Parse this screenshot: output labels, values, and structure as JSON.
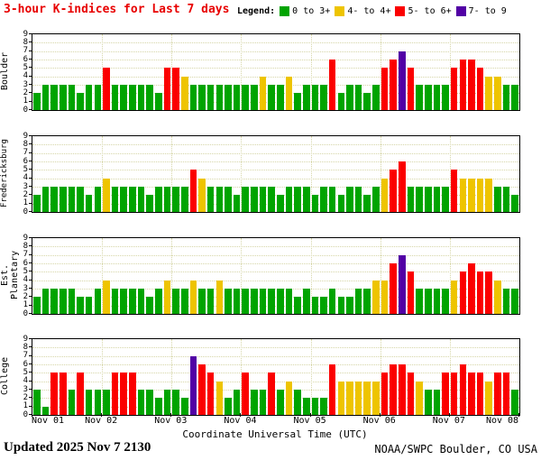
{
  "title": "3-hour K-indices for Last 7 days",
  "legend": {
    "label": "Legend:",
    "items": [
      {
        "label": "0 to 3+",
        "color": "#00a400"
      },
      {
        "label": "4- to 4+",
        "color": "#eec400"
      },
      {
        "label": "5- to 6+",
        "color": "#fb0000"
      },
      {
        "label": "7- to 9",
        "color": "#5200a5"
      }
    ]
  },
  "x_axis_label": "Coordinate Universal Time (UTC)",
  "footer": {
    "updated": "Updated 2025 Nov 7 2130",
    "credit": "NOAA/SWPC Boulder, CO USA"
  },
  "chart_data": {
    "type": "bar",
    "title": "3-hour K-indices for Last 7 days",
    "xlabel": "Coordinate Universal Time (UTC)",
    "ylim": [
      0,
      9
    ],
    "y_ticks": [
      0,
      1,
      2,
      3,
      4,
      5,
      6,
      7,
      8,
      9
    ],
    "x_tick_labels": [
      "Nov 01",
      "Nov 02",
      "Nov 03",
      "Nov 04",
      "Nov 05",
      "Nov 06",
      "Nov 07",
      "Nov 08"
    ],
    "days": 7,
    "bars_per_day": 8,
    "grid": true,
    "legend_position": "top-right",
    "color_scale": [
      {
        "range": "0 to 3+",
        "color": "#00a400"
      },
      {
        "range": "4- to 4+",
        "color": "#eec400"
      },
      {
        "range": "5- to 6+",
        "color": "#fb0000"
      },
      {
        "range": "7- to 9",
        "color": "#5200a5"
      }
    ],
    "series": [
      {
        "name": "Boulder",
        "values": [
          2,
          3,
          3,
          3,
          3,
          2,
          3,
          3,
          5,
          3,
          3,
          3,
          3,
          3,
          2,
          5,
          5,
          4,
          3,
          3,
          3,
          3,
          3,
          3,
          3,
          3,
          4,
          3,
          3,
          4,
          2,
          3,
          3,
          3,
          6,
          2,
          3,
          3,
          2,
          3,
          5,
          6,
          7,
          5,
          3,
          3,
          3,
          3,
          5,
          6,
          6,
          5,
          4,
          4,
          3,
          3
        ]
      },
      {
        "name": "Fredericksburg",
        "values": [
          2,
          3,
          3,
          3,
          3,
          3,
          2,
          3,
          4,
          3,
          3,
          3,
          3,
          2,
          3,
          3,
          3,
          3,
          5,
          4,
          3,
          3,
          3,
          2,
          3,
          3,
          3,
          3,
          2,
          3,
          3,
          3,
          2,
          3,
          3,
          2,
          3,
          3,
          2,
          3,
          4,
          5,
          6,
          3,
          3,
          3,
          3,
          3,
          5,
          4,
          4,
          4,
          4,
          3,
          3,
          2
        ]
      },
      {
        "name": "Est. Planetary",
        "values": [
          2,
          3,
          3,
          3,
          3,
          2,
          2,
          3,
          4,
          3,
          3,
          3,
          3,
          2,
          3,
          4,
          3,
          3,
          4,
          3,
          3,
          4,
          3,
          3,
          3,
          3,
          3,
          3,
          3,
          3,
          2,
          3,
          2,
          2,
          3,
          2,
          2,
          3,
          3,
          4,
          4,
          6,
          7,
          5,
          3,
          3,
          3,
          3,
          4,
          5,
          6,
          5,
          5,
          4,
          3,
          3
        ]
      },
      {
        "name": "College",
        "values": [
          3,
          1,
          5,
          5,
          3,
          5,
          3,
          3,
          3,
          5,
          5,
          5,
          3,
          3,
          2,
          3,
          3,
          2,
          7,
          6,
          5,
          4,
          2,
          3,
          5,
          3,
          3,
          5,
          3,
          4,
          3,
          2,
          2,
          2,
          6,
          4,
          4,
          4,
          4,
          4,
          5,
          6,
          6,
          5,
          4,
          3,
          3,
          5,
          5,
          6,
          5,
          5,
          4,
          5,
          5,
          3
        ]
      }
    ]
  }
}
